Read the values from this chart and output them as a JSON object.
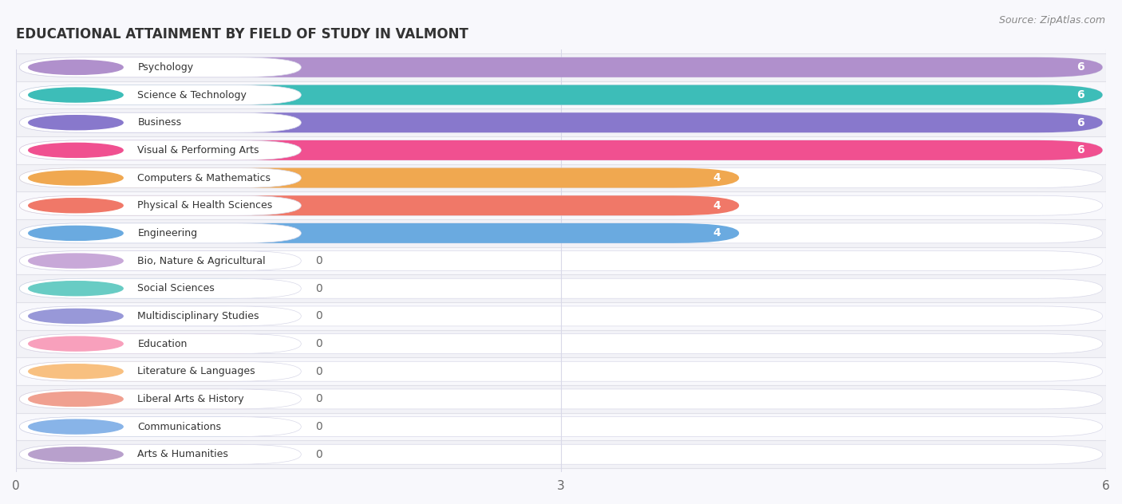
{
  "title": "EDUCATIONAL ATTAINMENT BY FIELD OF STUDY IN VALMONT",
  "source": "Source: ZipAtlas.com",
  "categories": [
    "Psychology",
    "Science & Technology",
    "Business",
    "Visual & Performing Arts",
    "Computers & Mathematics",
    "Physical & Health Sciences",
    "Engineering",
    "Bio, Nature & Agricultural",
    "Social Sciences",
    "Multidisciplinary Studies",
    "Education",
    "Literature & Languages",
    "Liberal Arts & History",
    "Communications",
    "Arts & Humanities"
  ],
  "values": [
    6,
    6,
    6,
    6,
    4,
    4,
    4,
    0,
    0,
    0,
    0,
    0,
    0,
    0,
    0
  ],
  "bar_colors": [
    "#b090cc",
    "#3dbdb8",
    "#8878cc",
    "#f05090",
    "#f0a850",
    "#f07868",
    "#6aaae0",
    "#c8a8d8",
    "#68ccc4",
    "#9898d8",
    "#f8a0bc",
    "#f8c080",
    "#f0a090",
    "#88b4e8",
    "#b8a0cc"
  ],
  "bg_colors": [
    "#ede8f5",
    "#e0f5f5",
    "#eae8f8",
    "#fde8f0",
    "#fdf0e0",
    "#fde8e5",
    "#e5f0f8",
    "#f0ecf8",
    "#e5f8f5",
    "#ebebf8",
    "#fdeef5",
    "#fef5ea",
    "#fdecea",
    "#eaf2fc",
    "#f0ecf8"
  ],
  "xlim_max": 6,
  "xticks": [
    0,
    3,
    6
  ],
  "background_color": "#f0f0f5",
  "row_sep_color": "#e0e0e8",
  "zero_bar_width": 1.5
}
